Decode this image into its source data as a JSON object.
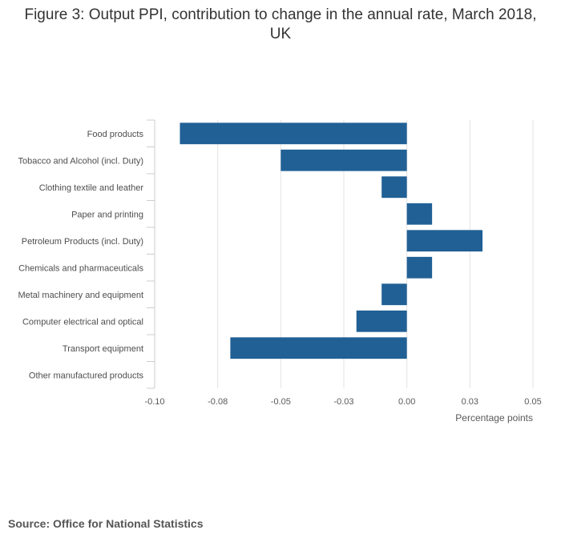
{
  "title_line1": "Figure 3: Output PPI, contribution to change in the annual rate, March 2018,",
  "title_line2": "UK",
  "source": "Source: Office for National Statistics",
  "chart_data": {
    "type": "bar",
    "orientation": "horizontal",
    "title": "Figure 3: Output PPI, contribution to change in the annual rate, March 2018, UK",
    "xlabel": "Percentage points",
    "ylabel": "",
    "xlim": [
      -0.1,
      0.05
    ],
    "ticks": [
      -0.1,
      -0.075,
      -0.05,
      -0.025,
      0.0,
      0.025,
      0.05
    ],
    "tick_labels": [
      "-0.10",
      "-0.08",
      "-0.05",
      "-0.03",
      "0.00",
      "0.03",
      "0.05"
    ],
    "grid": true,
    "color": "#206095",
    "categories": [
      "Food products",
      "Tobacco and Alcohol (incl. Duty)",
      "Clothing textile and leather",
      "Paper and printing",
      "Petroleum Products (incl. Duty)",
      "Chemicals and pharmaceuticals",
      "Metal machinery and equipment",
      "Computer electrical and optical",
      "Transport equipment",
      "Other manufactured products"
    ],
    "values": [
      -0.09,
      -0.05,
      -0.01,
      0.01,
      0.03,
      0.01,
      -0.01,
      -0.02,
      -0.07,
      0.0
    ]
  }
}
